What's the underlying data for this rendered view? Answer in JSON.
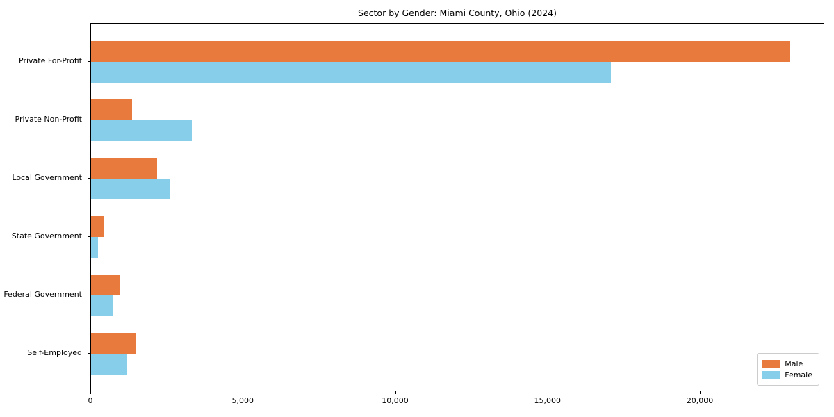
{
  "chart_data": {
    "type": "bar",
    "orientation": "horizontal",
    "title": "Sector by Gender: Miami County, Ohio (2024)",
    "categories": [
      "Private For-Profit",
      "Private Non-Profit",
      "Local Government",
      "State Government",
      "Federal Government",
      "Self-Employed"
    ],
    "series": [
      {
        "name": "Male",
        "color": "#e87a3e",
        "values": [
          22930,
          1340,
          2170,
          425,
          935,
          1450
        ]
      },
      {
        "name": "Female",
        "color": "#87ceea",
        "values": [
          17060,
          3310,
          2600,
          235,
          730,
          1190
        ]
      }
    ],
    "xlabel": "",
    "ylabel": "",
    "xlim": [
      0,
      24080
    ],
    "xticks": [
      0,
      5000,
      10000,
      15000,
      20000
    ],
    "xtick_labels": [
      "0",
      "5,000",
      "10,000",
      "15,000",
      "20,000"
    ],
    "grid": false,
    "legend_position": "lower right"
  },
  "legend": {
    "items": [
      {
        "label": "Male",
        "color": "#e87a3e"
      },
      {
        "label": "Female",
        "color": "#87ceea"
      }
    ]
  }
}
